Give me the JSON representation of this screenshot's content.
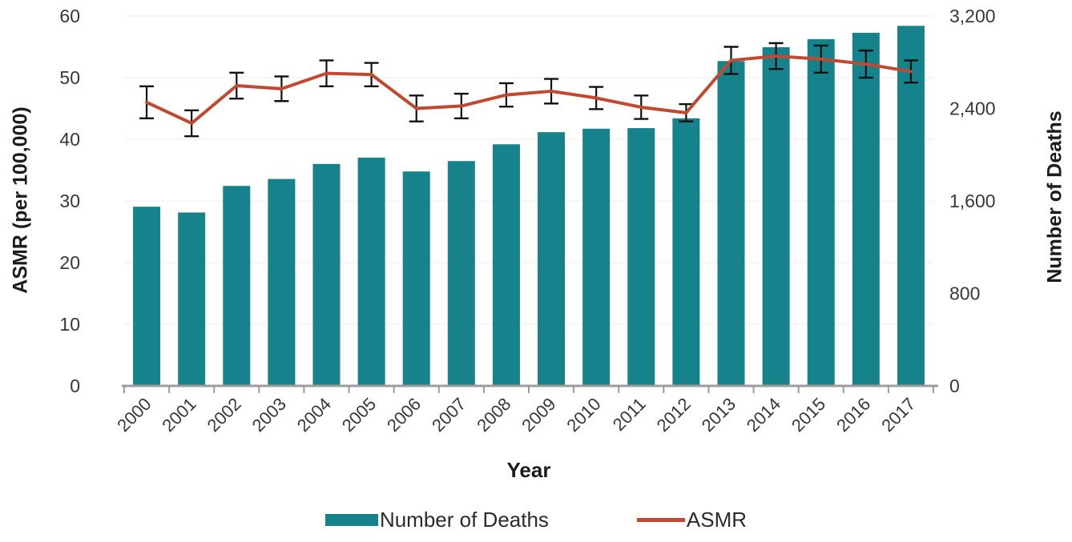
{
  "chart_data": {
    "type": "bar",
    "subtype": "bar+line dual axis with error bars",
    "categories": [
      "2000",
      "2001",
      "2002",
      "2003",
      "2004",
      "2005",
      "2006",
      "2007",
      "2008",
      "2009",
      "2010",
      "2011",
      "2012",
      "2013",
      "2014",
      "2015",
      "2016",
      "2017"
    ],
    "series": [
      {
        "name": "Number of Deaths",
        "type": "bar",
        "axis": "right",
        "color": "#16828C",
        "values": [
          1550,
          1500,
          1730,
          1790,
          1920,
          1975,
          1855,
          1945,
          2090,
          2195,
          2225,
          2230,
          2315,
          2810,
          2930,
          3000,
          3055,
          3115
        ]
      },
      {
        "name": "ASMR",
        "type": "line",
        "axis": "left",
        "color": "#C0492F",
        "values": [
          46.0,
          42.6,
          48.7,
          48.2,
          50.7,
          50.5,
          45.0,
          45.4,
          47.2,
          47.8,
          46.7,
          45.2,
          44.3,
          52.8,
          53.5,
          53.0,
          52.2,
          51.0
        ],
        "error": [
          2.6,
          2.1,
          2.1,
          2.0,
          2.1,
          1.9,
          2.1,
          2.0,
          1.9,
          2.0,
          1.8,
          1.9,
          1.4,
          2.2,
          2.1,
          2.2,
          2.2,
          1.8
        ],
        "error_bar_color": "#111111"
      }
    ],
    "left_axis": {
      "label": "ASMR (per 100,000)",
      "ticks": [
        "0",
        "10",
        "20",
        "30",
        "40",
        "50",
        "60"
      ],
      "tick_values": [
        0,
        10,
        20,
        30,
        40,
        50,
        60
      ],
      "min": 0,
      "max": 60
    },
    "right_axis": {
      "label": "Number of Deaths",
      "ticks": [
        "0",
        "800",
        "1,600",
        "2,400",
        "3,200"
      ],
      "tick_values": [
        0,
        800,
        1600,
        2400,
        3200
      ],
      "min": 0,
      "max": 3200
    },
    "x_axis": {
      "label": "Year"
    },
    "legend": [
      {
        "label": "Number of Deaths",
        "marker": "rect",
        "color": "#16828C"
      },
      {
        "label": "ASMR",
        "marker": "line",
        "color": "#C0492F"
      }
    ],
    "grid": true,
    "grid_color": "#ECECEC",
    "axis_line_color": "#9C9C9C",
    "tick_label_color": "#3A3637",
    "legend_position": "bottom"
  }
}
